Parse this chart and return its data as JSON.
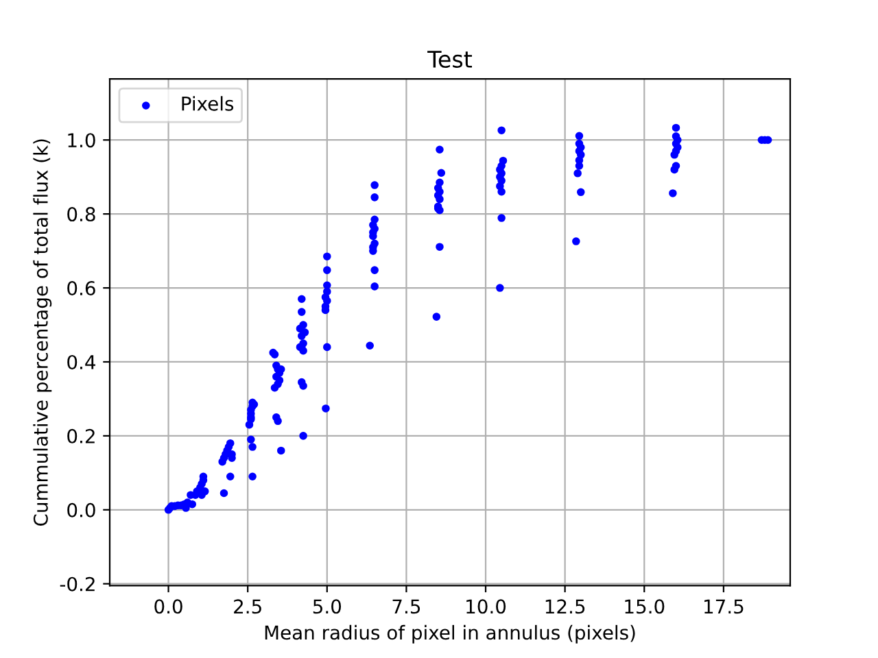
{
  "chart_data": {
    "type": "scatter",
    "title": "Test",
    "xlabel": "Mean radius of pixel in annulus (pixels)",
    "ylabel": "Cummulative percentage of total flux (k)",
    "x": [
      0,
      0.05,
      0.1,
      0.2,
      0.3,
      0.4,
      0.5,
      0.6,
      0.55,
      0.75,
      0.7,
      0.85,
      0.9,
      1.0,
      1.05,
      1.1,
      1.1,
      1.05,
      1.15,
      1.7,
      1.75,
      1.8,
      1.85,
      1.9,
      1.95,
      1.75,
      1.95,
      2.0,
      2.0,
      2.55,
      2.6,
      2.6,
      2.6,
      2.65,
      2.65,
      2.7,
      2.6,
      2.65,
      2.65,
      2.6,
      3.3,
      3.35,
      3.4,
      3.45,
      3.5,
      3.55,
      3.4,
      3.45,
      3.5,
      3.4,
      3.45,
      3.55,
      3.35,
      4.2,
      4.2,
      4.25,
      4.15,
      4.3,
      4.2,
      4.25,
      4.2,
      4.25,
      4.2,
      4.25,
      4.25,
      4.15,
      5.0,
      5.0,
      5.0,
      5.0,
      4.95,
      5.0,
      4.95,
      4.95,
      5.0,
      4.96,
      6.5,
      6.5,
      6.5,
      6.45,
      6.5,
      6.45,
      6.45,
      6.5,
      6.45,
      6.45,
      6.5,
      6.5,
      6.35,
      8.55,
      8.6,
      8.55,
      8.5,
      8.55,
      8.5,
      8.55,
      8.5,
      8.55,
      8.5,
      8.55,
      8.45,
      10.5,
      10.55,
      10.5,
      10.45,
      10.5,
      10.45,
      10.5,
      10.45,
      10.5,
      10.5,
      10.45,
      12.95,
      12.95,
      13.0,
      12.95,
      13.0,
      12.95,
      12.95,
      12.9,
      13.0,
      12.85,
      16.0,
      16.0,
      16.05,
      16.0,
      16.05,
      16.0,
      15.95,
      16.0,
      15.95,
      15.9,
      18.7,
      18.8,
      18.9
    ],
    "series": [
      {
        "name": "Pixels",
        "color": "#0000ff",
        "values": [
          0,
          0.005,
          0.01,
          0.01,
          0.012,
          0.012,
          0.015,
          0.02,
          0.005,
          0.015,
          0.04,
          0.04,
          0.05,
          0.06,
          0.07,
          0.08,
          0.09,
          0.04,
          0.05,
          0.13,
          0.14,
          0.15,
          0.16,
          0.17,
          0.18,
          0.045,
          0.09,
          0.15,
          0.14,
          0.23,
          0.25,
          0.26,
          0.27,
          0.28,
          0.29,
          0.285,
          0.19,
          0.17,
          0.09,
          0.245,
          0.425,
          0.42,
          0.39,
          0.38,
          0.37,
          0.38,
          0.36,
          0.34,
          0.35,
          0.25,
          0.24,
          0.16,
          0.33,
          0.57,
          0.535,
          0.5,
          0.49,
          0.48,
          0.47,
          0.45,
          0.44,
          0.43,
          0.345,
          0.335,
          0.2,
          0.44,
          0.685,
          0.648,
          0.607,
          0.59,
          0.575,
          0.565,
          0.55,
          0.54,
          0.44,
          0.274,
          0.878,
          0.845,
          0.785,
          0.77,
          0.76,
          0.75,
          0.74,
          0.72,
          0.71,
          0.7,
          0.648,
          0.604,
          0.444,
          0.974,
          0.911,
          0.885,
          0.87,
          0.86,
          0.85,
          0.84,
          0.82,
          0.81,
          0.815,
          0.711,
          0.522,
          1.026,
          0.944,
          0.93,
          0.92,
          0.91,
          0.9,
          0.89,
          0.875,
          0.86,
          0.789,
          0.6,
          1.011,
          0.99,
          0.98,
          0.97,
          0.96,
          0.945,
          0.93,
          0.91,
          0.859,
          0.726,
          1.033,
          1.01,
          1.0,
          0.99,
          0.98,
          0.97,
          0.96,
          0.93,
          0.92,
          0.856,
          1.0,
          1.0,
          1.0
        ]
      }
    ],
    "xlim": [
      -1.85,
      19.6
    ],
    "ylim": [
      -0.205,
      1.165
    ],
    "xticks": [
      {
        "value": 0,
        "label": "0.0"
      },
      2.5,
      {
        "value": 5,
        "label": "5.0"
      },
      7.5,
      {
        "value": 10,
        "label": "10.0"
      },
      12.5,
      {
        "value": 15,
        "label": "15.0"
      },
      17.5
    ],
    "yticks": [
      -0.2,
      {
        "value": 0,
        "label": "0.0"
      },
      0.2,
      0.4,
      0.6,
      0.8,
      {
        "value": 1,
        "label": "1.0"
      }
    ],
    "grid": true,
    "legend": "upper left",
    "marker": "circle"
  }
}
